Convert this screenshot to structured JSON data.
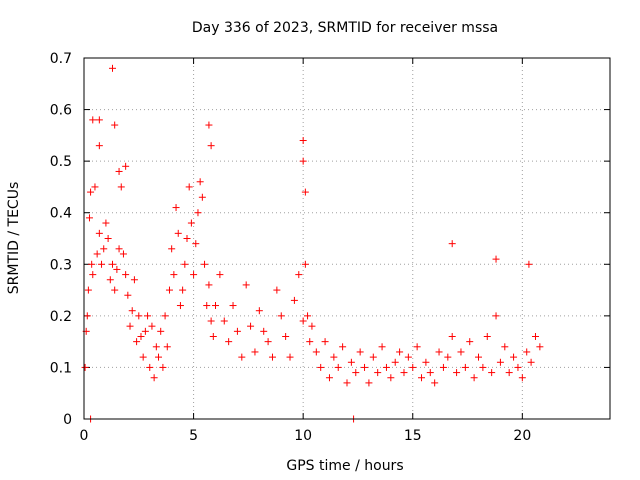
{
  "chart_data": {
    "type": "scatter",
    "title": "Day 336 of 2023, SRMTID for receiver mssa",
    "xlabel": "GPS time / hours",
    "ylabel": "SRMTID / TECUs",
    "xlim": [
      0,
      24
    ],
    "ylim": [
      0,
      0.7
    ],
    "xticks": [
      0,
      5,
      10,
      15,
      20
    ],
    "yticks": [
      0,
      0.1,
      0.2,
      0.3,
      0.4,
      0.5,
      0.6,
      0.7
    ],
    "xtick_labels": [
      "0",
      "5",
      "10",
      "15",
      "20"
    ],
    "ytick_labels": [
      "0",
      "0.1",
      "0.2",
      "0.3",
      "0.4",
      "0.5",
      "0.6",
      "0.7"
    ],
    "grid": true,
    "marker": "plus",
    "color": "#ff0000",
    "series": [
      {
        "name": "SRMTID",
        "x": [
          0.05,
          0.1,
          0.15,
          0.2,
          0.25,
          0.3,
          0.35,
          0.4,
          0.5,
          0.6,
          0.7,
          0.8,
          0.9,
          1.0,
          1.1,
          1.2,
          1.3,
          1.4,
          1.5,
          1.6,
          1.7,
          1.8,
          1.9,
          2.0,
          2.1,
          2.2,
          2.3,
          2.4,
          2.5,
          2.6,
          2.7,
          2.8,
          2.9,
          3.0,
          3.1,
          3.2,
          3.3,
          3.4,
          3.5,
          3.6,
          3.7,
          3.8,
          3.9,
          4.0,
          4.1,
          4.2,
          4.3,
          4.4,
          4.5,
          4.6,
          4.7,
          4.8,
          4.9,
          5.0,
          5.1,
          5.2,
          5.3,
          5.4,
          5.5,
          5.6,
          5.7,
          5.8,
          5.9,
          6.0,
          6.2,
          6.4,
          6.6,
          6.8,
          7.0,
          7.2,
          7.4,
          7.6,
          7.8,
          8.0,
          8.2,
          8.4,
          8.6,
          8.8,
          9.0,
          9.2,
          9.4,
          9.6,
          9.8,
          10.0,
          10.1,
          10.2,
          10.3,
          10.4,
          10.6,
          10.8,
          11.0,
          11.2,
          11.4,
          11.6,
          11.8,
          12.0,
          12.2,
          12.4,
          12.6,
          12.8,
          13.0,
          13.2,
          13.4,
          13.6,
          13.8,
          14.0,
          14.2,
          14.4,
          14.6,
          14.8,
          15.0,
          15.2,
          15.4,
          15.6,
          15.8,
          16.0,
          16.2,
          16.4,
          16.6,
          16.8,
          17.0,
          17.2,
          17.4,
          17.6,
          17.8,
          18.0,
          18.2,
          18.4,
          18.6,
          18.8,
          19.0,
          19.2,
          19.4,
          19.6,
          19.8,
          20.0,
          20.2,
          20.4,
          20.6,
          20.8,
          0.4,
          0.7,
          0.7,
          1.3,
          1.4,
          1.6,
          1.9,
          5.7,
          5.8,
          10.0,
          10.0,
          10.1,
          16.8,
          18.8,
          20.3,
          0.3,
          12.3
        ],
        "y": [
          0.1,
          0.17,
          0.2,
          0.25,
          0.39,
          0.44,
          0.3,
          0.28,
          0.45,
          0.32,
          0.36,
          0.3,
          0.33,
          0.38,
          0.35,
          0.27,
          0.3,
          0.25,
          0.29,
          0.33,
          0.45,
          0.32,
          0.28,
          0.24,
          0.18,
          0.21,
          0.27,
          0.15,
          0.2,
          0.16,
          0.12,
          0.17,
          0.2,
          0.1,
          0.18,
          0.08,
          0.14,
          0.12,
          0.17,
          0.1,
          0.2,
          0.14,
          0.25,
          0.33,
          0.28,
          0.41,
          0.36,
          0.22,
          0.25,
          0.3,
          0.35,
          0.45,
          0.38,
          0.28,
          0.34,
          0.4,
          0.46,
          0.43,
          0.3,
          0.22,
          0.26,
          0.19,
          0.16,
          0.22,
          0.28,
          0.19,
          0.15,
          0.22,
          0.17,
          0.12,
          0.26,
          0.18,
          0.13,
          0.21,
          0.17,
          0.15,
          0.12,
          0.25,
          0.2,
          0.16,
          0.12,
          0.23,
          0.28,
          0.19,
          0.3,
          0.2,
          0.15,
          0.18,
          0.13,
          0.1,
          0.15,
          0.08,
          0.12,
          0.1,
          0.14,
          0.07,
          0.11,
          0.09,
          0.13,
          0.1,
          0.07,
          0.12,
          0.09,
          0.14,
          0.1,
          0.08,
          0.11,
          0.13,
          0.09,
          0.12,
          0.1,
          0.14,
          0.08,
          0.11,
          0.09,
          0.07,
          0.13,
          0.1,
          0.12,
          0.16,
          0.09,
          0.13,
          0.1,
          0.15,
          0.08,
          0.12,
          0.1,
          0.16,
          0.09,
          0.2,
          0.11,
          0.14,
          0.09,
          0.12,
          0.1,
          0.08,
          0.13,
          0.11,
          0.16,
          0.14,
          0.58,
          0.58,
          0.53,
          0.68,
          0.57,
          0.48,
          0.49,
          0.57,
          0.53,
          0.54,
          0.5,
          0.44,
          0.34,
          0.31,
          0.3,
          0.0,
          0.0
        ]
      }
    ]
  }
}
